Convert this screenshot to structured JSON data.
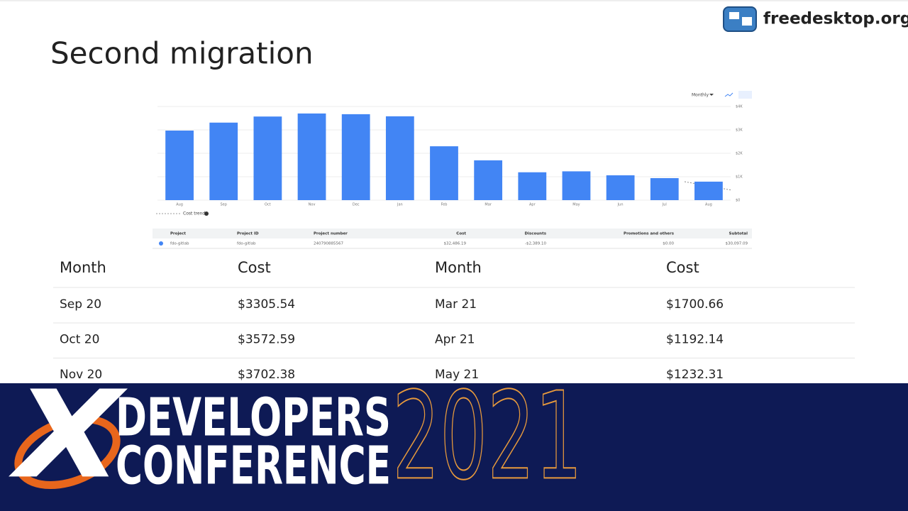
{
  "title": "Second migration",
  "logo": "freedesktop.org",
  "chart_data": {
    "type": "bar",
    "categories": [
      "Aug",
      "Sep",
      "Oct",
      "Nov",
      "Dec",
      "Jan",
      "Feb",
      "Mar",
      "Apr",
      "May",
      "Jun",
      "Jul",
      "Aug"
    ],
    "values": [
      2970,
      3310,
      3570,
      3700,
      3670,
      3580,
      2300,
      1700,
      1190,
      1230,
      1060,
      940,
      790
    ],
    "color": "#4285f4",
    "ylim": [
      0,
      4000
    ],
    "yticks": [
      {
        "value": 0,
        "label": "$0"
      },
      {
        "value": 1000,
        "label": "$1K"
      },
      {
        "value": 2000,
        "label": "$2K"
      },
      {
        "value": 3000,
        "label": "$3K"
      },
      {
        "value": 4000,
        "label": "$4K"
      }
    ],
    "grid": true,
    "period": "Monthly",
    "trend_label": "Cost trend"
  },
  "billing_table": {
    "headers": [
      "Project",
      "Project ID",
      "Project number",
      "Cost",
      "Discounts",
      "Promotions and others",
      "Subtotal"
    ],
    "rows": [
      [
        "fdo-gitlab",
        "fdo-gitlab",
        "240790885567",
        "$32,486.19",
        "-$2,389.10",
        "$0.00",
        "$30,097.09"
      ]
    ]
  },
  "table": {
    "headers": [
      "Month",
      "Cost",
      "Month",
      "Cost"
    ],
    "rows": [
      [
        "Sep 20",
        "$3305.54",
        "Mar 21",
        "$1700.66"
      ],
      [
        "Oct 20",
        "$3572.59",
        "Apr 21",
        "$1192.14"
      ],
      [
        "Nov 20",
        "$3702.38",
        "May 21",
        "$1232.31"
      ]
    ]
  },
  "banner": {
    "mark": "X",
    "line1": "DEVELOPERS",
    "line2": "CONFERENCE",
    "year": "2021"
  }
}
